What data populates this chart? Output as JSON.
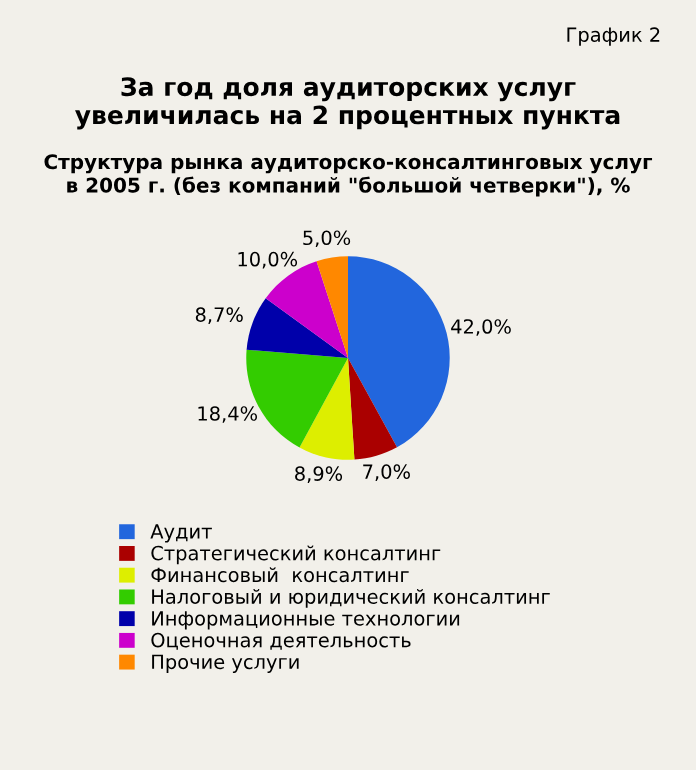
{
  "chart_data": {
    "type": "pie",
    "title": "За год доля аудиторских услуг\nувеличилась на 2 процентных пункта",
    "subtitle": "Структура рынка аудиторско-консалтинговых услуг\nв 2005 г. (без компаний \"большой четверки\"), %",
    "annotations": [
      "График 2"
    ],
    "categories": [
      "Аудит",
      "Стратегический консалтинг",
      "Финансовый  консалтинг",
      "Налоговый и юридический консалтинг",
      "Информационные технологии",
      "Оценочная деятельность",
      "Прочие услуги"
    ],
    "values": [
      42.0,
      7.0,
      8.9,
      18.4,
      8.7,
      10.0,
      5.0
    ],
    "value_labels": [
      "42,0%",
      "7,0%",
      "8,9%",
      "18,4%",
      "8,7%",
      "10,0%",
      "5,0%"
    ],
    "colors": [
      "#2266dd",
      "#aa0000",
      "#ddee00",
      "#33cc00",
      "#0000aa",
      "#cc00cc",
      "#ff8800"
    ],
    "legend": "bottom"
  }
}
